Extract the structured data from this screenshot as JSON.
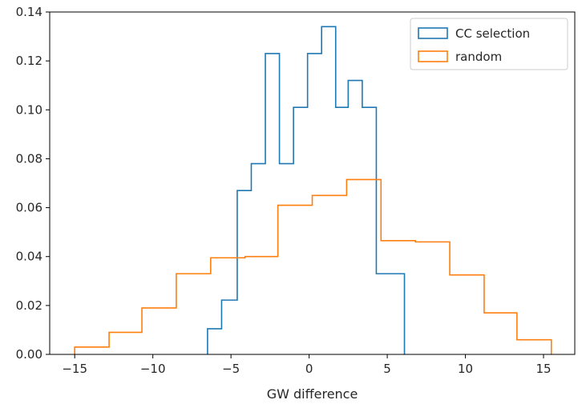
{
  "chart_data": {
    "type": "step-histogram",
    "xlabel": "GW difference",
    "ylabel": "",
    "xlim": [
      -16.6,
      17.0
    ],
    "ylim": [
      0.0,
      0.14
    ],
    "xticks": [
      -15,
      -10,
      -5,
      0,
      5,
      10,
      15
    ],
    "xtick_labels": [
      "−15",
      "−10",
      "−5",
      "0",
      "5",
      "10",
      "15"
    ],
    "yticks": [
      0.0,
      0.02,
      0.04,
      0.06,
      0.08,
      0.1,
      0.12,
      0.14
    ],
    "ytick_labels": [
      "0.00",
      "0.02",
      "0.04",
      "0.06",
      "0.08",
      "0.10",
      "0.12",
      "0.14"
    ],
    "legend_position": "top-right",
    "series": [
      {
        "name": "CC selection",
        "color": "#1f77b4",
        "bin_edges": [
          -6.5,
          -5.6,
          -4.6,
          -3.7,
          -2.8,
          -1.9,
          -1.0,
          -0.1,
          0.8,
          1.7,
          2.5,
          3.4,
          4.3,
          5.2,
          6.1
        ],
        "values": [
          0.0105,
          0.0222,
          0.067,
          0.078,
          0.123,
          0.078,
          0.101,
          0.123,
          0.134,
          0.101,
          0.112,
          0.101,
          0.033,
          0.033
        ]
      },
      {
        "name": "random",
        "color": "#ff7f0e",
        "bin_edges": [
          -15.0,
          -12.8,
          -10.7,
          -8.5,
          -6.3,
          -4.1,
          -2.0,
          0.2,
          2.4,
          4.6,
          6.8,
          9.0,
          11.2,
          13.3,
          15.5
        ],
        "values": [
          0.003,
          0.009,
          0.019,
          0.033,
          0.0395,
          0.04,
          0.061,
          0.065,
          0.0715,
          0.0465,
          0.046,
          0.0325,
          0.017,
          0.006
        ]
      }
    ]
  }
}
